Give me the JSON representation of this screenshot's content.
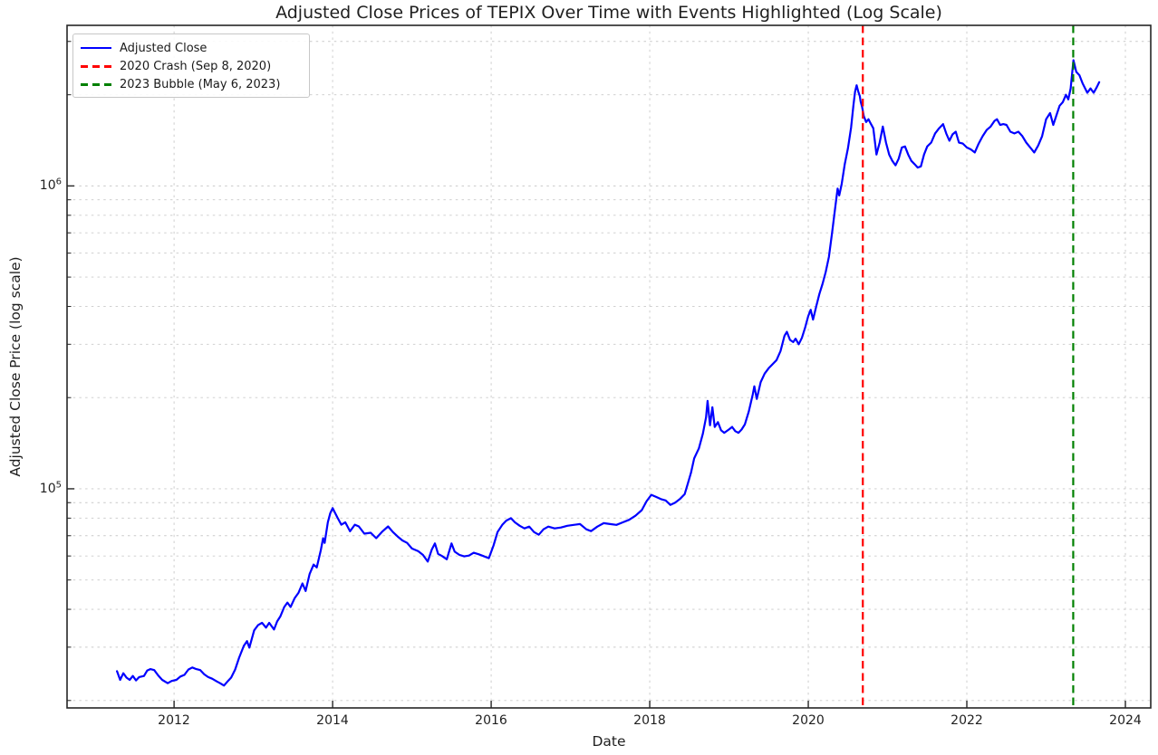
{
  "chart_data": {
    "type": "line",
    "title": "Adjusted Close Prices of TEPIX Over Time with Events Highlighted (Log Scale)",
    "xlabel": "Date",
    "ylabel": "Adjusted Close Price (log scale)",
    "yscale": "log",
    "grid": {
      "which": "both",
      "style": "dashed",
      "color": "#c9c9c9"
    },
    "xlim": [
      2010.65,
      2024.32
    ],
    "ylim": [
      18900,
      3390000
    ],
    "x_tick_years": [
      2012,
      2014,
      2016,
      2018,
      2020,
      2022,
      2024
    ],
    "x_tick_labels": [
      "2012",
      "2014",
      "2016",
      "2018",
      "2020",
      "2022",
      "2024"
    ],
    "y_tick_labels": [
      {
        "base": "10",
        "exp": "5",
        "value": 100000
      },
      {
        "base": "10",
        "exp": "6",
        "value": 1000000
      }
    ],
    "legend": {
      "position": "upper left",
      "items": [
        {
          "label": "Adjusted Close",
          "color": "#0000ff",
          "style": "solid"
        },
        {
          "label": "2020 Crash (Sep 8, 2020)",
          "color": "#ff0000",
          "style": "dashed"
        },
        {
          "label": "2023 Bubble (May 6, 2023)",
          "color": "#008000",
          "style": "dashed"
        }
      ]
    },
    "events": [
      {
        "name": "2020 Crash",
        "date": "Sep 8, 2020",
        "year": 2020.688,
        "color": "#ff0000"
      },
      {
        "name": "2023 Bubble",
        "date": "May 6, 2023",
        "year": 2023.342,
        "color": "#008000"
      }
    ],
    "series": [
      {
        "name": "Adjusted Close",
        "color": "#0000ff",
        "points": [
          [
            2011.28,
            25000
          ],
          [
            2011.32,
            23400
          ],
          [
            2011.36,
            24600
          ],
          [
            2011.4,
            23800
          ],
          [
            2011.44,
            23400
          ],
          [
            2011.48,
            24100
          ],
          [
            2011.52,
            23300
          ],
          [
            2011.56,
            23900
          ],
          [
            2011.62,
            24100
          ],
          [
            2011.66,
            25100
          ],
          [
            2011.7,
            25400
          ],
          [
            2011.75,
            25200
          ],
          [
            2011.8,
            24200
          ],
          [
            2011.85,
            23400
          ],
          [
            2011.92,
            22800
          ],
          [
            2011.97,
            23200
          ],
          [
            2012.03,
            23400
          ],
          [
            2012.08,
            24000
          ],
          [
            2012.13,
            24300
          ],
          [
            2012.18,
            25300
          ],
          [
            2012.23,
            25700
          ],
          [
            2012.28,
            25400
          ],
          [
            2012.33,
            25200
          ],
          [
            2012.38,
            24400
          ],
          [
            2012.43,
            23900
          ],
          [
            2012.48,
            23600
          ],
          [
            2012.54,
            23100
          ],
          [
            2012.58,
            22800
          ],
          [
            2012.63,
            22400
          ],
          [
            2012.68,
            23200
          ],
          [
            2012.72,
            23800
          ],
          [
            2012.77,
            25300
          ],
          [
            2012.82,
            27700
          ],
          [
            2012.88,
            30300
          ],
          [
            2012.92,
            31400
          ],
          [
            2012.95,
            29900
          ],
          [
            2013.01,
            34100
          ],
          [
            2013.06,
            35500
          ],
          [
            2013.11,
            36100
          ],
          [
            2013.16,
            34800
          ],
          [
            2013.2,
            36100
          ],
          [
            2013.26,
            34300
          ],
          [
            2013.3,
            36500
          ],
          [
            2013.34,
            37900
          ],
          [
            2013.39,
            40700
          ],
          [
            2013.43,
            42100
          ],
          [
            2013.47,
            40700
          ],
          [
            2013.52,
            43500
          ],
          [
            2013.57,
            45400
          ],
          [
            2013.62,
            48700
          ],
          [
            2013.66,
            46000
          ],
          [
            2013.71,
            52300
          ],
          [
            2013.76,
            56200
          ],
          [
            2013.8,
            55000
          ],
          [
            2013.85,
            62600
          ],
          [
            2013.88,
            68700
          ],
          [
            2013.9,
            66300
          ],
          [
            2013.94,
            77500
          ],
          [
            2013.97,
            83100
          ],
          [
            2014.0,
            86300
          ],
          [
            2014.06,
            80500
          ],
          [
            2014.11,
            76100
          ],
          [
            2014.16,
            77500
          ],
          [
            2014.22,
            72400
          ],
          [
            2014.28,
            76100
          ],
          [
            2014.33,
            75100
          ],
          [
            2014.4,
            71100
          ],
          [
            2014.48,
            71600
          ],
          [
            2014.55,
            68700
          ],
          [
            2014.63,
            72400
          ],
          [
            2014.7,
            75100
          ],
          [
            2014.76,
            72000
          ],
          [
            2014.82,
            69600
          ],
          [
            2014.88,
            67500
          ],
          [
            2014.94,
            66300
          ],
          [
            2015.0,
            63500
          ],
          [
            2015.08,
            62200
          ],
          [
            2015.14,
            60500
          ],
          [
            2015.2,
            57500
          ],
          [
            2015.25,
            63000
          ],
          [
            2015.29,
            66000
          ],
          [
            2015.33,
            61000
          ],
          [
            2015.38,
            60000
          ],
          [
            2015.44,
            58500
          ],
          [
            2015.5,
            66000
          ],
          [
            2015.54,
            62000
          ],
          [
            2015.6,
            60500
          ],
          [
            2015.66,
            59800
          ],
          [
            2015.72,
            60200
          ],
          [
            2015.78,
            61500
          ],
          [
            2015.84,
            60800
          ],
          [
            2015.9,
            60000
          ],
          [
            2015.97,
            59000
          ],
          [
            2016.03,
            65000
          ],
          [
            2016.08,
            72000
          ],
          [
            2016.14,
            76000
          ],
          [
            2016.19,
            78500
          ],
          [
            2016.25,
            80000
          ],
          [
            2016.3,
            77500
          ],
          [
            2016.36,
            75500
          ],
          [
            2016.42,
            74000
          ],
          [
            2016.48,
            75000
          ],
          [
            2016.54,
            72000
          ],
          [
            2016.6,
            70500
          ],
          [
            2016.66,
            73500
          ],
          [
            2016.72,
            75000
          ],
          [
            2016.8,
            74000
          ],
          [
            2016.88,
            74500
          ],
          [
            2016.96,
            75500
          ],
          [
            2017.04,
            76000
          ],
          [
            2017.12,
            76500
          ],
          [
            2017.2,
            73500
          ],
          [
            2017.26,
            72500
          ],
          [
            2017.34,
            75000
          ],
          [
            2017.42,
            77000
          ],
          [
            2017.5,
            76500
          ],
          [
            2017.58,
            76000
          ],
          [
            2017.66,
            77500
          ],
          [
            2017.74,
            79000
          ],
          [
            2017.82,
            81500
          ],
          [
            2017.9,
            85000
          ],
          [
            2017.96,
            91000
          ],
          [
            2018.02,
            95500
          ],
          [
            2018.08,
            94000
          ],
          [
            2018.14,
            92500
          ],
          [
            2018.2,
            91500
          ],
          [
            2018.26,
            88500
          ],
          [
            2018.32,
            90000
          ],
          [
            2018.38,
            92500
          ],
          [
            2018.44,
            96000
          ],
          [
            2018.48,
            104000
          ],
          [
            2018.52,
            113000
          ],
          [
            2018.56,
            126000
          ],
          [
            2018.62,
            136000
          ],
          [
            2018.67,
            152000
          ],
          [
            2018.71,
            172000
          ],
          [
            2018.73,
            195000
          ],
          [
            2018.76,
            162000
          ],
          [
            2018.79,
            186000
          ],
          [
            2018.82,
            160000
          ],
          [
            2018.86,
            166000
          ],
          [
            2018.9,
            156000
          ],
          [
            2018.94,
            153000
          ],
          [
            2019.0,
            157000
          ],
          [
            2019.04,
            160000
          ],
          [
            2019.08,
            155000
          ],
          [
            2019.12,
            153000
          ],
          [
            2019.16,
            157000
          ],
          [
            2019.2,
            163000
          ],
          [
            2019.25,
            180000
          ],
          [
            2019.3,
            205000
          ],
          [
            2019.32,
            218000
          ],
          [
            2019.35,
            198000
          ],
          [
            2019.4,
            225000
          ],
          [
            2019.45,
            240000
          ],
          [
            2019.5,
            250000
          ],
          [
            2019.55,
            258000
          ],
          [
            2019.6,
            266000
          ],
          [
            2019.65,
            285000
          ],
          [
            2019.7,
            320000
          ],
          [
            2019.73,
            330000
          ],
          [
            2019.77,
            310000
          ],
          [
            2019.81,
            305000
          ],
          [
            2019.84,
            313000
          ],
          [
            2019.88,
            300000
          ],
          [
            2019.92,
            315000
          ],
          [
            2019.96,
            340000
          ],
          [
            2020.0,
            372000
          ],
          [
            2020.03,
            390000
          ],
          [
            2020.06,
            362000
          ],
          [
            2020.1,
            400000
          ],
          [
            2020.14,
            440000
          ],
          [
            2020.18,
            475000
          ],
          [
            2020.22,
            520000
          ],
          [
            2020.26,
            583000
          ],
          [
            2020.3,
            700000
          ],
          [
            2020.34,
            850000
          ],
          [
            2020.37,
            980000
          ],
          [
            2020.39,
            930000
          ],
          [
            2020.42,
            1010000
          ],
          [
            2020.46,
            1180000
          ],
          [
            2020.5,
            1330000
          ],
          [
            2020.54,
            1560000
          ],
          [
            2020.57,
            1850000
          ],
          [
            2020.59,
            2050000
          ],
          [
            2020.61,
            2150000
          ],
          [
            2020.63,
            2050000
          ],
          [
            2020.65,
            1980000
          ],
          [
            2020.66,
            1900000
          ],
          [
            2020.68,
            1820000
          ],
          [
            2020.7,
            1700000
          ],
          [
            2020.73,
            1625000
          ],
          [
            2020.76,
            1660000
          ],
          [
            2020.78,
            1620000
          ],
          [
            2020.82,
            1550000
          ],
          [
            2020.86,
            1270000
          ],
          [
            2020.9,
            1390000
          ],
          [
            2020.94,
            1570000
          ],
          [
            2020.98,
            1390000
          ],
          [
            2021.02,
            1270000
          ],
          [
            2021.06,
            1210000
          ],
          [
            2021.1,
            1170000
          ],
          [
            2021.14,
            1230000
          ],
          [
            2021.18,
            1340000
          ],
          [
            2021.22,
            1350000
          ],
          [
            2021.26,
            1270000
          ],
          [
            2021.3,
            1210000
          ],
          [
            2021.34,
            1180000
          ],
          [
            2021.38,
            1150000
          ],
          [
            2021.42,
            1160000
          ],
          [
            2021.46,
            1270000
          ],
          [
            2021.5,
            1350000
          ],
          [
            2021.55,
            1390000
          ],
          [
            2021.6,
            1490000
          ],
          [
            2021.65,
            1550000
          ],
          [
            2021.7,
            1600000
          ],
          [
            2021.74,
            1490000
          ],
          [
            2021.78,
            1410000
          ],
          [
            2021.82,
            1480000
          ],
          [
            2021.86,
            1510000
          ],
          [
            2021.9,
            1390000
          ],
          [
            2021.95,
            1380000
          ],
          [
            2022.0,
            1340000
          ],
          [
            2022.05,
            1320000
          ],
          [
            2022.1,
            1290000
          ],
          [
            2022.15,
            1380000
          ],
          [
            2022.2,
            1460000
          ],
          [
            2022.25,
            1530000
          ],
          [
            2022.3,
            1570000
          ],
          [
            2022.35,
            1640000
          ],
          [
            2022.38,
            1660000
          ],
          [
            2022.42,
            1590000
          ],
          [
            2022.46,
            1600000
          ],
          [
            2022.5,
            1590000
          ],
          [
            2022.55,
            1510000
          ],
          [
            2022.6,
            1490000
          ],
          [
            2022.65,
            1510000
          ],
          [
            2022.7,
            1460000
          ],
          [
            2022.75,
            1390000
          ],
          [
            2022.8,
            1340000
          ],
          [
            2022.85,
            1290000
          ],
          [
            2022.9,
            1360000
          ],
          [
            2022.95,
            1460000
          ],
          [
            2023.0,
            1660000
          ],
          [
            2023.05,
            1740000
          ],
          [
            2023.09,
            1590000
          ],
          [
            2023.13,
            1710000
          ],
          [
            2023.17,
            1840000
          ],
          [
            2023.21,
            1890000
          ],
          [
            2023.25,
            2000000
          ],
          [
            2023.28,
            1930000
          ],
          [
            2023.31,
            2100000
          ],
          [
            2023.345,
            2600000
          ],
          [
            2023.38,
            2380000
          ],
          [
            2023.42,
            2320000
          ],
          [
            2023.46,
            2180000
          ],
          [
            2023.52,
            2030000
          ],
          [
            2023.56,
            2100000
          ],
          [
            2023.6,
            2030000
          ],
          [
            2023.64,
            2120000
          ],
          [
            2023.67,
            2200000
          ]
        ]
      }
    ]
  }
}
